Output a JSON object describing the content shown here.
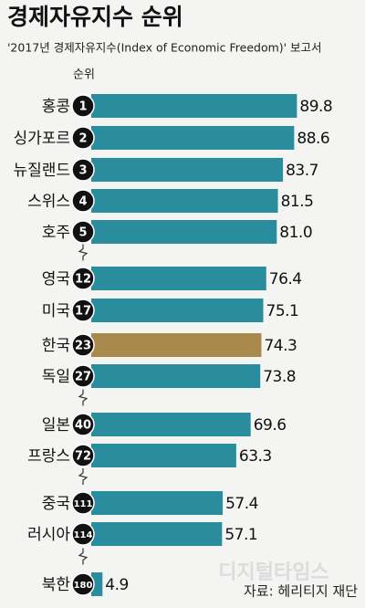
{
  "chart_data": {
    "type": "bar",
    "title": "경제자유지수 순위",
    "subtitle": "'2017년 경제자유지수(Index of Economic Freedom)' 보고서",
    "rank_label": "순위",
    "categories": [
      "홍콩",
      "싱가포르",
      "뉴질랜드",
      "스위스",
      "호주",
      "영국",
      "미국",
      "한국",
      "독일",
      "일본",
      "프랑스",
      "중국",
      "러시아",
      "북한"
    ],
    "ranks": [
      1,
      2,
      3,
      4,
      5,
      12,
      17,
      23,
      27,
      40,
      72,
      111,
      114,
      180
    ],
    "values": [
      89.8,
      88.6,
      83.7,
      81.5,
      81.0,
      76.4,
      75.1,
      74.3,
      73.8,
      69.6,
      63.3,
      57.4,
      57.1,
      4.9
    ],
    "value_labels": [
      "89.8",
      "88.6",
      "83.7",
      "81.5",
      "81.0",
      "76.4",
      "75.1",
      "74.3",
      "73.8",
      "69.6",
      "63.3",
      "57.4",
      "57.1",
      "4.9"
    ],
    "colors": [
      "#2a8d9e",
      "#2a8d9e",
      "#2a8d9e",
      "#2a8d9e",
      "#2a8d9e",
      "#2a8d9e",
      "#2a8d9e",
      "#a98a4c",
      "#2a8d9e",
      "#2a8d9e",
      "#2a8d9e",
      "#2a8d9e",
      "#2a8d9e",
      "#2a8d9e"
    ],
    "source": "자료: 헤리티지 재단",
    "watermark": "디지털타임스"
  }
}
